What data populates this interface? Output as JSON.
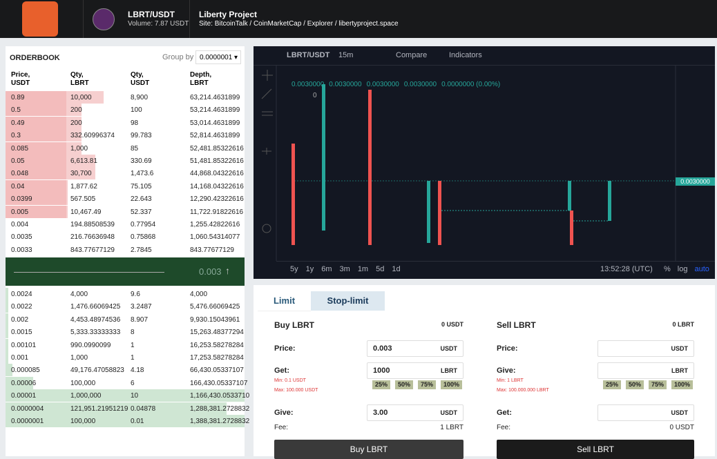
{
  "header": {
    "pair": "LBRT/USDT",
    "volume": "Volume: 7.87  USDT",
    "project": "Liberty Project",
    "site_label": "Site:",
    "links": [
      "BitcoinTalk",
      "CoinMarketCap",
      "Explorer",
      "libertyproject.space"
    ],
    "link_separator": "/"
  },
  "orderbook": {
    "title": "ORDERBOOK",
    "group_label": "Group by",
    "group_value": "0.0000001",
    "columns": [
      "Price,\nUSDT",
      "Qty,\nLBRT",
      "Qty,\nUSDT",
      "Depth,\nLBRT"
    ],
    "asks": [
      [
        "0.89",
        "10,000",
        "8,900",
        "63,214.4631899"
      ],
      [
        "0.5",
        "200",
        "100",
        "53,214.4631899"
      ],
      [
        "0.49",
        "200",
        "98",
        "53,014.4631899"
      ],
      [
        "0.3",
        "332.60996374",
        "99.783",
        "52,814.4631899"
      ],
      [
        "0.085",
        "1,000",
        "85",
        "52,481.85322616"
      ],
      [
        "0.05",
        "6,613.81",
        "330.69",
        "51,481.85322616"
      ],
      [
        "0.048",
        "30,700",
        "1,473.6",
        "44,868.04322616"
      ],
      [
        "0.04",
        "1,877.62",
        "75.105",
        "14,168.04322616"
      ],
      [
        "0.0399",
        "567.505",
        "22.643",
        "12,290.42322616"
      ],
      [
        "0.005",
        "10,467.49",
        "52.337",
        "11,722.91822616"
      ],
      [
        "0.004",
        "194.88508539",
        "0.77954",
        "1,255.42822616"
      ],
      [
        "0.0035",
        "216.76636948",
        "0.75868",
        "1,060.54314077"
      ],
      [
        "0.0033",
        "843.77677129",
        "2.7845",
        "843.77677129"
      ]
    ],
    "last_price": "0.003",
    "last_price_arrow": "↑",
    "bids": [
      [
        "0.0024",
        "4,000",
        "9.6",
        "4,000"
      ],
      [
        "0.0022",
        "1,476.66069425",
        "3.2487",
        "5,476.66069425"
      ],
      [
        "0.002",
        "4,453.48974536",
        "8.907",
        "9,930.15043961"
      ],
      [
        "0.0015",
        "5,333.33333333",
        "8",
        "15,263.48377294"
      ],
      [
        "0.00101",
        "990.0990099",
        "1",
        "16,253.58278284"
      ],
      [
        "0.001",
        "1,000",
        "1",
        "17,253.58278284"
      ],
      [
        "0.000085",
        "49,176.47058823",
        "4.18",
        "66,430.05337107"
      ],
      [
        "0.00006",
        "100,000",
        "6",
        "166,430.05337107"
      ],
      [
        "0.00001",
        "1,000,000",
        "10",
        "1,166,430.0533710"
      ],
      [
        "0.0000004",
        "121,951.21951219",
        "0.04878",
        "1,288,381.2728832"
      ],
      [
        "0.0000001",
        "100,000",
        "0.01",
        "1,388,381.2728832"
      ]
    ]
  },
  "chart": {
    "symbol": "LBRT/USDT",
    "interval": "15m",
    "compare": "Compare",
    "indicators": "Indicators",
    "ohlc": [
      "0.0030000",
      "0.0030000",
      "0.0030000",
      "0.0030000",
      "0.0000000 (0.00%)"
    ],
    "volume": "0",
    "price_tag": "0.0030000",
    "ranges": [
      "5y",
      "1y",
      "6m",
      "3m",
      "1m",
      "5d",
      "1d"
    ],
    "time": "13:52:28 (UTC)",
    "scale_options": [
      "%",
      "log",
      "auto"
    ]
  },
  "trade": {
    "tabs": [
      "Limit",
      "Stop-limit"
    ],
    "buy": {
      "title": "Buy LBRT",
      "balance": "0 USDT",
      "price_label": "Price:",
      "price": "0.003",
      "price_unit": "USDT",
      "second_label": "Get:",
      "second": "1000",
      "second_unit": "LBRT",
      "min": "Min: 0.1 USDT",
      "max": "Max: 100.000 USDT",
      "pct": [
        "25%",
        "50%",
        "75%",
        "100%"
      ],
      "third_label": "Give:",
      "third": "3.00",
      "third_unit": "USDT",
      "fee_label": "Fee:",
      "fee": "1 LBRT",
      "button": "Buy LBRT"
    },
    "sell": {
      "title": "Sell LBRT",
      "balance": "0 LBRT",
      "price_label": "Price:",
      "price_unit": "USDT",
      "second_label": "Give:",
      "second_unit": "LBRT",
      "min": "Min: 1 LBRT",
      "max": "Max: 100.000.000 LBRT",
      "pct": [
        "25%",
        "50%",
        "75%",
        "100%"
      ],
      "third_label": "Get:",
      "third_unit": "USDT",
      "fee_label": "Fee:",
      "fee": "0 USDT",
      "button": "Sell LBRT"
    }
  }
}
